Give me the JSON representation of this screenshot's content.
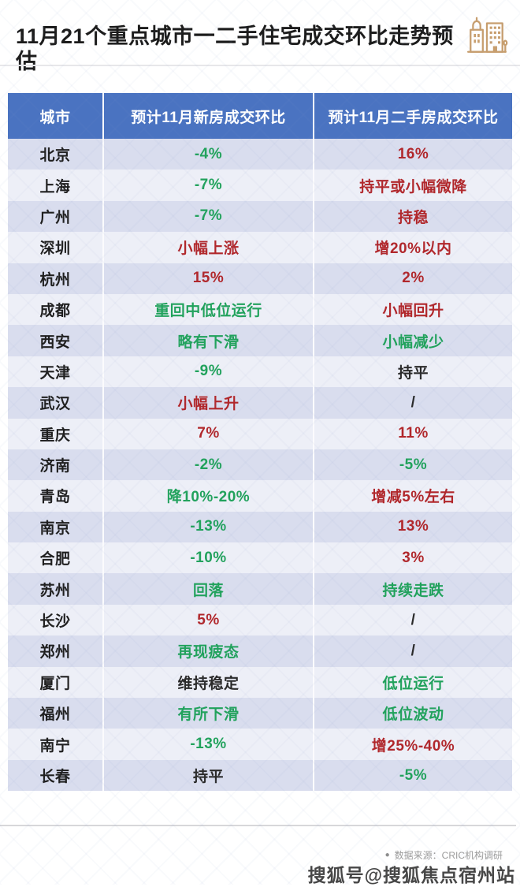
{
  "header": {
    "title": "11月21个重点城市一二手住宅成交环比走势预估",
    "icon": "buildings-icon"
  },
  "chart_data": {
    "type": "table",
    "title": "11月21个重点城市一二手住宅成交环比走势预估",
    "columns": [
      "城市",
      "预计11月新房成交环比",
      "预计11月二手房成交环比"
    ],
    "rows": [
      {
        "city": "北京",
        "new": {
          "text": "-4%",
          "color": "green"
        },
        "used": {
          "text": "16%",
          "color": "red"
        }
      },
      {
        "city": "上海",
        "new": {
          "text": "-7%",
          "color": "green"
        },
        "used": {
          "text": "持平或小幅微降",
          "color": "red"
        }
      },
      {
        "city": "广州",
        "new": {
          "text": "-7%",
          "color": "green"
        },
        "used": {
          "text": "持稳",
          "color": "red"
        }
      },
      {
        "city": "深圳",
        "new": {
          "text": "小幅上涨",
          "color": "red"
        },
        "used": {
          "text": "增20%以内",
          "color": "red"
        }
      },
      {
        "city": "杭州",
        "new": {
          "text": "15%",
          "color": "red"
        },
        "used": {
          "text": "2%",
          "color": "red"
        }
      },
      {
        "city": "成都",
        "new": {
          "text": "重回中低位运行",
          "color": "green"
        },
        "used": {
          "text": "小幅回升",
          "color": "red"
        }
      },
      {
        "city": "西安",
        "new": {
          "text": "略有下滑",
          "color": "green"
        },
        "used": {
          "text": "小幅减少",
          "color": "green"
        }
      },
      {
        "city": "天津",
        "new": {
          "text": "-9%",
          "color": "green"
        },
        "used": {
          "text": "持平",
          "color": "dark"
        }
      },
      {
        "city": "武汉",
        "new": {
          "text": "小幅上升",
          "color": "red"
        },
        "used": {
          "text": "/",
          "color": "dark"
        }
      },
      {
        "city": "重庆",
        "new": {
          "text": "7%",
          "color": "red"
        },
        "used": {
          "text": "11%",
          "color": "red"
        }
      },
      {
        "city": "济南",
        "new": {
          "text": "-2%",
          "color": "green"
        },
        "used": {
          "text": "-5%",
          "color": "green"
        }
      },
      {
        "city": "青岛",
        "new": {
          "text": "降10%-20%",
          "color": "green"
        },
        "used": {
          "text": "增减5%左右",
          "color": "red"
        }
      },
      {
        "city": "南京",
        "new": {
          "text": "-13%",
          "color": "green"
        },
        "used": {
          "text": "13%",
          "color": "red"
        }
      },
      {
        "city": "合肥",
        "new": {
          "text": "-10%",
          "color": "green"
        },
        "used": {
          "text": "3%",
          "color": "red"
        }
      },
      {
        "city": "苏州",
        "new": {
          "text": "回落",
          "color": "green"
        },
        "used": {
          "text": "持续走跌",
          "color": "green"
        }
      },
      {
        "city": "长沙",
        "new": {
          "text": "5%",
          "color": "red"
        },
        "used": {
          "text": "/",
          "color": "dark"
        }
      },
      {
        "city": "郑州",
        "new": {
          "text": "再现疲态",
          "color": "green"
        },
        "used": {
          "text": "/",
          "color": "dark"
        }
      },
      {
        "city": "厦门",
        "new": {
          "text": "维持稳定",
          "color": "dark"
        },
        "used": {
          "text": "低位运行",
          "color": "green"
        }
      },
      {
        "city": "福州",
        "new": {
          "text": "有所下滑",
          "color": "green"
        },
        "used": {
          "text": "低位波动",
          "color": "green"
        }
      },
      {
        "city": "南宁",
        "new": {
          "text": "-13%",
          "color": "green"
        },
        "used": {
          "text": "增25%-40%",
          "color": "red"
        }
      },
      {
        "city": "长春",
        "new": {
          "text": "持平",
          "color": "dark"
        },
        "used": {
          "text": "-5%",
          "color": "green"
        }
      }
    ],
    "value_colors": {
      "green": "#21a25c",
      "red": "#b1272b",
      "dark": "#2a2a2a"
    },
    "layout": {
      "header_bg": "#4a73c1",
      "row_odd_bg": "#d9ddee",
      "row_even_bg": "#edeff7",
      "grid": "white column separators"
    }
  },
  "footer": {
    "source_bullet": "●",
    "source_text": "数据来源：CRIC机构调研",
    "watermark": "搜狐号@搜狐焦点宿州站"
  },
  "colors": {
    "accent_blue": "#4a73c1",
    "green": "#21a25c",
    "red": "#b1272b",
    "icon_tan": "#c79e6e"
  }
}
